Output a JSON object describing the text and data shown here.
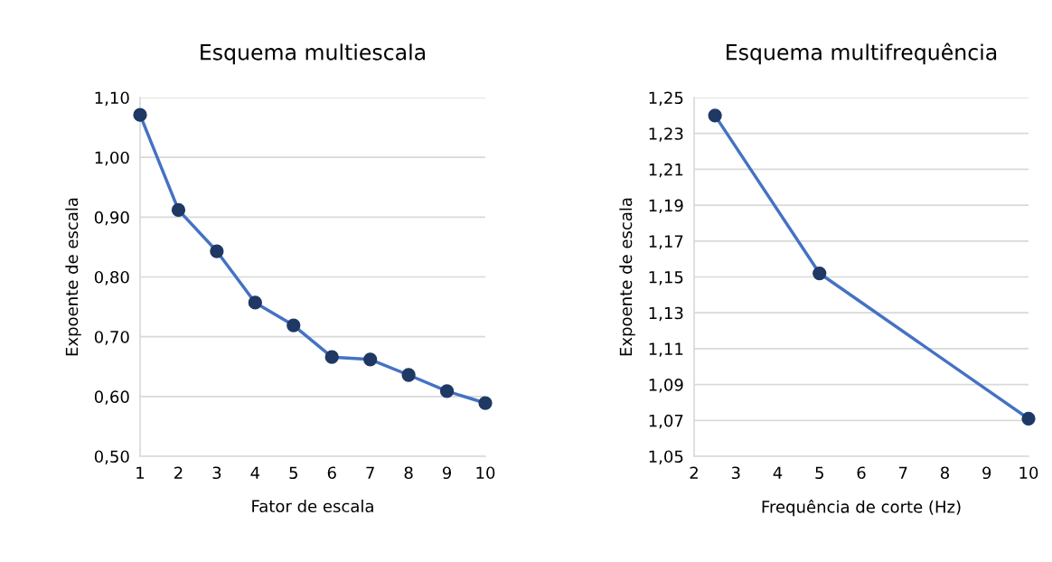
{
  "chart_data": [
    {
      "type": "line",
      "title": "Esquema multiescala",
      "xlabel": "Fator de escala",
      "ylabel": "Expoente de escala",
      "x": [
        1,
        2,
        3,
        4,
        5,
        6,
        7,
        8,
        9,
        10
      ],
      "series": [
        {
          "color": "#4472c4",
          "colors": [
            "#203864",
            "#203864",
            "#203864",
            "#203864",
            "#203864",
            "#203864",
            "#203864",
            "#203864",
            "#203864",
            "#203864"
          ],
          "values": [
            1.071,
            0.912,
            0.843,
            0.757,
            0.719,
            0.666,
            0.662,
            0.636,
            0.609,
            0.589
          ]
        }
      ],
      "xlim": [
        1,
        10
      ],
      "xticks": [
        1,
        2,
        3,
        4,
        5,
        6,
        7,
        8,
        9,
        10
      ],
      "ylim": [
        0.5,
        1.1
      ],
      "yticks": [
        {
          "value": 0.5,
          "label": "0,50"
        },
        {
          "value": 0.6,
          "label": "0,60"
        },
        {
          "value": 0.7,
          "label": "0,70"
        },
        {
          "value": 0.8,
          "label": "0,80"
        },
        {
          "value": 0.9,
          "label": "0,90"
        },
        {
          "value": 1.0,
          "label": "1,00"
        },
        {
          "value": 1.1,
          "label": "1,10"
        }
      ],
      "grid": "y",
      "marker": "circle",
      "line_style": "solid"
    },
    {
      "type": "line",
      "title": "Esquema multifrequência",
      "xlabel": "Frequência de corte (Hz)",
      "ylabel": "Expoente de escala",
      "x": [
        2.5,
        5,
        10
      ],
      "series": [
        {
          "color": "#4472c4",
          "colors": [
            "#203864",
            "#203864",
            "#203864"
          ],
          "values": [
            1.24,
            1.152,
            1.071
          ]
        }
      ],
      "xlim": [
        2,
        10
      ],
      "xticks": [
        2,
        3,
        4,
        5,
        6,
        7,
        8,
        9,
        10
      ],
      "ylim": [
        1.05,
        1.25
      ],
      "yticks": [
        {
          "value": 1.05,
          "label": "1,05"
        },
        {
          "value": 1.07,
          "label": "1,07"
        },
        {
          "value": 1.09,
          "label": "1,09"
        },
        {
          "value": 1.11,
          "label": "1,11"
        },
        {
          "value": 1.13,
          "label": "1,13"
        },
        {
          "value": 1.15,
          "label": "1,15"
        },
        {
          "value": 1.17,
          "label": "1,17"
        },
        {
          "value": 1.19,
          "label": "1,19"
        },
        {
          "value": 1.21,
          "label": "1,21"
        },
        {
          "value": 1.23,
          "label": "1,23"
        },
        {
          "value": 1.25,
          "label": "1,25"
        }
      ],
      "grid": "y",
      "marker": "circle",
      "line_style": "solid"
    }
  ]
}
